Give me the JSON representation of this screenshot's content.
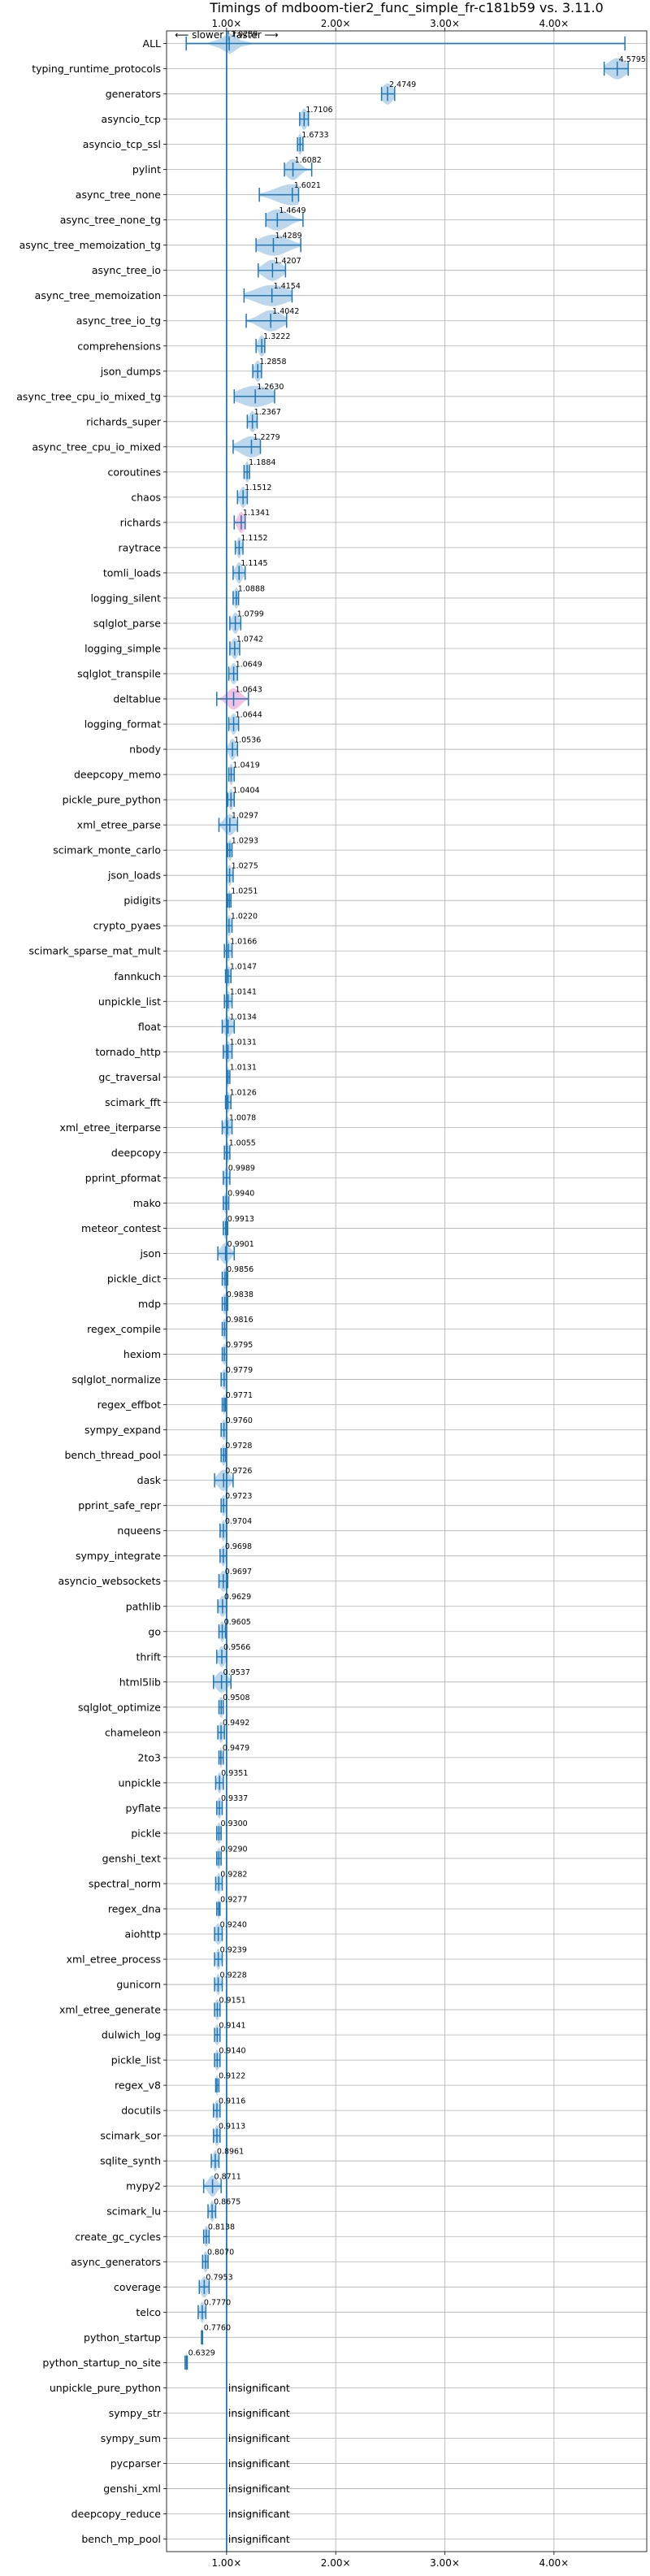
{
  "chart_data": {
    "type": "violin",
    "title": "Timings of mdboom-tier2_func_simple_fr-c181b59 vs. 3.11.0",
    "direction_label": "⟵ slower | faster ⟶",
    "x_ticks": [
      {
        "value": 1.0,
        "label": "1.00×"
      },
      {
        "value": 2.0,
        "label": "2.00×"
      },
      {
        "value": 3.0,
        "label": "3.00×"
      },
      {
        "value": 4.0,
        "label": "4.00×"
      }
    ],
    "xlim": [
      0.45,
      4.85
    ],
    "reference_line": 1.0,
    "grid": true,
    "insignificant_text": "insignificant",
    "colors": {
      "main": "#1f77b4",
      "body": "#a6c8e6",
      "slower": "#e377c2",
      "grid": "#b0b0b0"
    },
    "benchmarks": [
      {
        "name": "ALL",
        "value": 1.0239,
        "label": "1.0239",
        "min": 0.63,
        "max": 4.65,
        "spread": 0.07
      },
      {
        "name": "typing_runtime_protocols",
        "value": 4.5795,
        "label": "4.5795",
        "min": 4.46,
        "max": 4.68,
        "spread": 0.08
      },
      {
        "name": "generators",
        "value": 2.4749,
        "label": "2.4749",
        "min": 2.42,
        "max": 2.54,
        "spread": 0.05
      },
      {
        "name": "asyncio_tcp",
        "value": 1.7106,
        "label": "1.7106",
        "min": 1.67,
        "max": 1.75,
        "spread": 0.03
      },
      {
        "name": "asyncio_tcp_ssl",
        "value": 1.6733,
        "label": "1.6733",
        "min": 1.65,
        "max": 1.7,
        "spread": 0.02
      },
      {
        "name": "pylint",
        "value": 1.6082,
        "label": "1.6082",
        "min": 1.53,
        "max": 1.78,
        "spread": 0.06
      },
      {
        "name": "async_tree_none",
        "value": 1.6021,
        "label": "1.6021",
        "min": 1.3,
        "max": 1.66,
        "spread": 0.15
      },
      {
        "name": "async_tree_none_tg",
        "value": 1.4649,
        "label": "1.4649",
        "min": 1.36,
        "max": 1.7,
        "spread": 0.1
      },
      {
        "name": "async_tree_memoization_tg",
        "value": 1.4289,
        "label": "1.4289",
        "min": 1.27,
        "max": 1.68,
        "spread": 0.13
      },
      {
        "name": "async_tree_io",
        "value": 1.4207,
        "label": "1.4207",
        "min": 1.29,
        "max": 1.54,
        "spread": 0.08
      },
      {
        "name": "async_tree_memoization",
        "value": 1.4154,
        "label": "1.4154",
        "min": 1.16,
        "max": 1.6,
        "spread": 0.15
      },
      {
        "name": "async_tree_io_tg",
        "value": 1.4042,
        "label": "1.4042",
        "min": 1.18,
        "max": 1.55,
        "spread": 0.1
      },
      {
        "name": "comprehensions",
        "value": 1.3222,
        "label": "1.3222",
        "min": 1.27,
        "max": 1.35,
        "spread": 0.03
      },
      {
        "name": "json_dumps",
        "value": 1.2858,
        "label": "1.2858",
        "min": 1.24,
        "max": 1.32,
        "spread": 0.03
      },
      {
        "name": "async_tree_cpu_io_mixed_tg",
        "value": 1.263,
        "label": "1.2630",
        "min": 1.07,
        "max": 1.44,
        "spread": 0.15
      },
      {
        "name": "richards_super",
        "value": 1.2367,
        "label": "1.2367",
        "min": 1.19,
        "max": 1.28,
        "spread": 0.03
      },
      {
        "name": "async_tree_cpu_io_mixed",
        "value": 1.2279,
        "label": "1.2279",
        "min": 1.06,
        "max": 1.31,
        "spread": 0.1
      },
      {
        "name": "coroutines",
        "value": 1.1884,
        "label": "1.1884",
        "min": 1.16,
        "max": 1.21,
        "spread": 0.02
      },
      {
        "name": "chaos",
        "value": 1.1512,
        "label": "1.1512",
        "min": 1.1,
        "max": 1.19,
        "spread": 0.03
      },
      {
        "name": "richards",
        "value": 1.1341,
        "label": "1.1341",
        "min": 1.07,
        "max": 1.17,
        "spread": 0.03,
        "slower_tint": true
      },
      {
        "name": "raytrace",
        "value": 1.1152,
        "label": "1.1152",
        "min": 1.08,
        "max": 1.15,
        "spread": 0.02
      },
      {
        "name": "tomli_loads",
        "value": 1.1145,
        "label": "1.1145",
        "min": 1.06,
        "max": 1.17,
        "spread": 0.03
      },
      {
        "name": "logging_silent",
        "value": 1.0888,
        "label": "1.0888",
        "min": 1.06,
        "max": 1.11,
        "spread": 0.02
      },
      {
        "name": "sqlglot_parse",
        "value": 1.0799,
        "label": "1.0799",
        "min": 1.03,
        "max": 1.13,
        "spread": 0.03
      },
      {
        "name": "logging_simple",
        "value": 1.0742,
        "label": "1.0742",
        "min": 1.03,
        "max": 1.12,
        "spread": 0.03
      },
      {
        "name": "sqlglot_transpile",
        "value": 1.0649,
        "label": "1.0649",
        "min": 1.02,
        "max": 1.1,
        "spread": 0.03
      },
      {
        "name": "deltablue",
        "value": 1.0643,
        "label": "1.0643",
        "min": 0.91,
        "max": 1.2,
        "spread": 0.06,
        "slower_tint": true
      },
      {
        "name": "logging_format",
        "value": 1.0644,
        "label": "1.0644",
        "min": 1.02,
        "max": 1.11,
        "spread": 0.03
      },
      {
        "name": "nbody",
        "value": 1.0536,
        "label": "1.0536",
        "min": 1.0,
        "max": 1.1,
        "spread": 0.03
      },
      {
        "name": "deepcopy_memo",
        "value": 1.0419,
        "label": "1.0419",
        "min": 1.02,
        "max": 1.07,
        "spread": 0.02
      },
      {
        "name": "pickle_pure_python",
        "value": 1.0404,
        "label": "1.0404",
        "min": 1.01,
        "max": 1.07,
        "spread": 0.02
      },
      {
        "name": "xml_etree_parse",
        "value": 1.0297,
        "label": "1.0297",
        "min": 0.93,
        "max": 1.1,
        "spread": 0.05
      },
      {
        "name": "scimark_monte_carlo",
        "value": 1.0293,
        "label": "1.0293",
        "min": 1.01,
        "max": 1.05,
        "spread": 0.02
      },
      {
        "name": "json_loads",
        "value": 1.0275,
        "label": "1.0275",
        "min": 1.0,
        "max": 1.06,
        "spread": 0.02
      },
      {
        "name": "pidigits",
        "value": 1.0251,
        "label": "1.0251",
        "min": 1.01,
        "max": 1.04,
        "spread": 0.01
      },
      {
        "name": "crypto_pyaes",
        "value": 1.022,
        "label": "1.0220",
        "min": 1.0,
        "max": 1.05,
        "spread": 0.02
      },
      {
        "name": "scimark_sparse_mat_mult",
        "value": 1.0166,
        "label": "1.0166",
        "min": 0.98,
        "max": 1.05,
        "spread": 0.02
      },
      {
        "name": "fannkuch",
        "value": 1.0147,
        "label": "1.0147",
        "min": 0.99,
        "max": 1.04,
        "spread": 0.02
      },
      {
        "name": "unpickle_list",
        "value": 1.0141,
        "label": "1.0141",
        "min": 0.98,
        "max": 1.05,
        "spread": 0.02
      },
      {
        "name": "float",
        "value": 1.0134,
        "label": "1.0134",
        "min": 0.96,
        "max": 1.07,
        "spread": 0.04
      },
      {
        "name": "tornado_http",
        "value": 1.0131,
        "label": "1.0131",
        "min": 0.97,
        "max": 1.05,
        "spread": 0.03
      },
      {
        "name": "gc_traversal",
        "value": 1.0131,
        "label": "1.0131",
        "min": 1.0,
        "max": 1.03,
        "spread": 0.01
      },
      {
        "name": "scimark_fft",
        "value": 1.0126,
        "label": "1.0126",
        "min": 0.99,
        "max": 1.04,
        "spread": 0.02
      },
      {
        "name": "xml_etree_iterparse",
        "value": 1.0078,
        "label": "1.0078",
        "min": 0.96,
        "max": 1.05,
        "spread": 0.03
      },
      {
        "name": "deepcopy",
        "value": 1.0055,
        "label": "1.0055",
        "min": 0.98,
        "max": 1.03,
        "spread": 0.02
      },
      {
        "name": "pprint_pformat",
        "value": 0.9989,
        "label": "0.9989",
        "min": 0.97,
        "max": 1.03,
        "spread": 0.02
      },
      {
        "name": "mako",
        "value": 0.994,
        "label": "0.9940",
        "min": 0.97,
        "max": 1.02,
        "spread": 0.02
      },
      {
        "name": "meteor_contest",
        "value": 0.9913,
        "label": "0.9913",
        "min": 0.97,
        "max": 1.01,
        "spread": 0.02
      },
      {
        "name": "json",
        "value": 0.9901,
        "label": "0.9901",
        "min": 0.92,
        "max": 1.07,
        "spread": 0.04
      },
      {
        "name": "pickle_dict",
        "value": 0.9856,
        "label": "0.9856",
        "min": 0.96,
        "max": 1.01,
        "spread": 0.02
      },
      {
        "name": "mdp",
        "value": 0.9838,
        "label": "0.9838",
        "min": 0.96,
        "max": 1.01,
        "spread": 0.02
      },
      {
        "name": "regex_compile",
        "value": 0.9816,
        "label": "0.9816",
        "min": 0.96,
        "max": 1.0,
        "spread": 0.02
      },
      {
        "name": "hexiom",
        "value": 0.9795,
        "label": "0.9795",
        "min": 0.96,
        "max": 1.0,
        "spread": 0.02
      },
      {
        "name": "sqlglot_normalize",
        "value": 0.9779,
        "label": "0.9779",
        "min": 0.95,
        "max": 1.0,
        "spread": 0.02
      },
      {
        "name": "regex_effbot",
        "value": 0.9771,
        "label": "0.9771",
        "min": 0.96,
        "max": 0.99,
        "spread": 0.01
      },
      {
        "name": "sympy_expand",
        "value": 0.976,
        "label": "0.9760",
        "min": 0.95,
        "max": 1.0,
        "spread": 0.02
      },
      {
        "name": "bench_thread_pool",
        "value": 0.9728,
        "label": "0.9728",
        "min": 0.95,
        "max": 0.99,
        "spread": 0.02
      },
      {
        "name": "dask",
        "value": 0.9726,
        "label": "0.9726",
        "min": 0.89,
        "max": 1.06,
        "spread": 0.05
      },
      {
        "name": "pprint_safe_repr",
        "value": 0.9723,
        "label": "0.9723",
        "min": 0.95,
        "max": 1.0,
        "spread": 0.02
      },
      {
        "name": "nqueens",
        "value": 0.9704,
        "label": "0.9704",
        "min": 0.94,
        "max": 1.0,
        "spread": 0.02
      },
      {
        "name": "sympy_integrate",
        "value": 0.9698,
        "label": "0.9698",
        "min": 0.94,
        "max": 1.0,
        "spread": 0.02
      },
      {
        "name": "asyncio_websockets",
        "value": 0.9697,
        "label": "0.9697",
        "min": 0.93,
        "max": 1.01,
        "spread": 0.03
      },
      {
        "name": "pathlib",
        "value": 0.9629,
        "label": "0.9629",
        "min": 0.92,
        "max": 1.0,
        "spread": 0.03
      },
      {
        "name": "go",
        "value": 0.9605,
        "label": "0.9605",
        "min": 0.93,
        "max": 0.99,
        "spread": 0.02
      },
      {
        "name": "thrift",
        "value": 0.9566,
        "label": "0.9566",
        "min": 0.91,
        "max": 1.0,
        "spread": 0.03
      },
      {
        "name": "html5lib",
        "value": 0.9537,
        "label": "0.9537",
        "min": 0.88,
        "max": 1.04,
        "spread": 0.05
      },
      {
        "name": "sqlglot_optimize",
        "value": 0.9508,
        "label": "0.9508",
        "min": 0.93,
        "max": 0.97,
        "spread": 0.02
      },
      {
        "name": "chameleon",
        "value": 0.9492,
        "label": "0.9492",
        "min": 0.92,
        "max": 0.98,
        "spread": 0.02
      },
      {
        "name": "2to3",
        "value": 0.9479,
        "label": "0.9479",
        "min": 0.93,
        "max": 0.97,
        "spread": 0.01
      },
      {
        "name": "unpickle",
        "value": 0.9351,
        "label": "0.9351",
        "min": 0.9,
        "max": 0.97,
        "spread": 0.02
      },
      {
        "name": "pyflate",
        "value": 0.9337,
        "label": "0.9337",
        "min": 0.91,
        "max": 0.96,
        "spread": 0.02
      },
      {
        "name": "pickle",
        "value": 0.93,
        "label": "0.9300",
        "min": 0.91,
        "max": 0.95,
        "spread": 0.02
      },
      {
        "name": "genshi_text",
        "value": 0.929,
        "label": "0.9290",
        "min": 0.91,
        "max": 0.95,
        "spread": 0.02
      },
      {
        "name": "spectral_norm",
        "value": 0.9282,
        "label": "0.9282",
        "min": 0.9,
        "max": 0.96,
        "spread": 0.02
      },
      {
        "name": "regex_dna",
        "value": 0.9277,
        "label": "0.9277",
        "min": 0.91,
        "max": 0.94,
        "spread": 0.01
      },
      {
        "name": "aiohttp",
        "value": 0.924,
        "label": "0.9240",
        "min": 0.89,
        "max": 0.96,
        "spread": 0.03
      },
      {
        "name": "xml_etree_process",
        "value": 0.9239,
        "label": "0.9239",
        "min": 0.89,
        "max": 0.96,
        "spread": 0.02
      },
      {
        "name": "gunicorn",
        "value": 0.9228,
        "label": "0.9228",
        "min": 0.89,
        "max": 0.96,
        "spread": 0.02
      },
      {
        "name": "xml_etree_generate",
        "value": 0.9151,
        "label": "0.9151",
        "min": 0.89,
        "max": 0.94,
        "spread": 0.02
      },
      {
        "name": "dulwich_log",
        "value": 0.9141,
        "label": "0.9141",
        "min": 0.89,
        "max": 0.94,
        "spread": 0.02
      },
      {
        "name": "pickle_list",
        "value": 0.914,
        "label": "0.9140",
        "min": 0.89,
        "max": 0.94,
        "spread": 0.02
      },
      {
        "name": "regex_v8",
        "value": 0.9122,
        "label": "0.9122",
        "min": 0.9,
        "max": 0.93,
        "spread": 0.01
      },
      {
        "name": "docutils",
        "value": 0.9116,
        "label": "0.9116",
        "min": 0.88,
        "max": 0.94,
        "spread": 0.02
      },
      {
        "name": "scimark_sor",
        "value": 0.9113,
        "label": "0.9113",
        "min": 0.88,
        "max": 0.94,
        "spread": 0.02
      },
      {
        "name": "sqlite_synth",
        "value": 0.8961,
        "label": "0.8961",
        "min": 0.86,
        "max": 0.93,
        "spread": 0.02
      },
      {
        "name": "mypy2",
        "value": 0.8711,
        "label": "0.8711",
        "min": 0.79,
        "max": 0.95,
        "spread": 0.04
      },
      {
        "name": "scimark_lu",
        "value": 0.8675,
        "label": "0.8675",
        "min": 0.83,
        "max": 0.9,
        "spread": 0.02
      },
      {
        "name": "create_gc_cycles",
        "value": 0.8138,
        "label": "0.8138",
        "min": 0.79,
        "max": 0.84,
        "spread": 0.02
      },
      {
        "name": "async_generators",
        "value": 0.807,
        "label": "0.8070",
        "min": 0.78,
        "max": 0.83,
        "spread": 0.02
      },
      {
        "name": "coverage",
        "value": 0.7953,
        "label": "0.7953",
        "min": 0.75,
        "max": 0.84,
        "spread": 0.03
      },
      {
        "name": "telco",
        "value": 0.777,
        "label": "0.7770",
        "min": 0.74,
        "max": 0.81,
        "spread": 0.02
      },
      {
        "name": "python_startup",
        "value": 0.776,
        "label": "0.7760",
        "min": 0.77,
        "max": 0.78,
        "spread": 0.005
      },
      {
        "name": "python_startup_no_site",
        "value": 0.6329,
        "label": "0.6329",
        "min": 0.62,
        "max": 0.64,
        "spread": 0.005
      },
      {
        "name": "unpickle_pure_python",
        "insignificant": true
      },
      {
        "name": "sympy_str",
        "insignificant": true
      },
      {
        "name": "sympy_sum",
        "insignificant": true
      },
      {
        "name": "pycparser",
        "insignificant": true
      },
      {
        "name": "genshi_xml",
        "insignificant": true
      },
      {
        "name": "deepcopy_reduce",
        "insignificant": true
      },
      {
        "name": "bench_mp_pool",
        "insignificant": true
      }
    ]
  }
}
